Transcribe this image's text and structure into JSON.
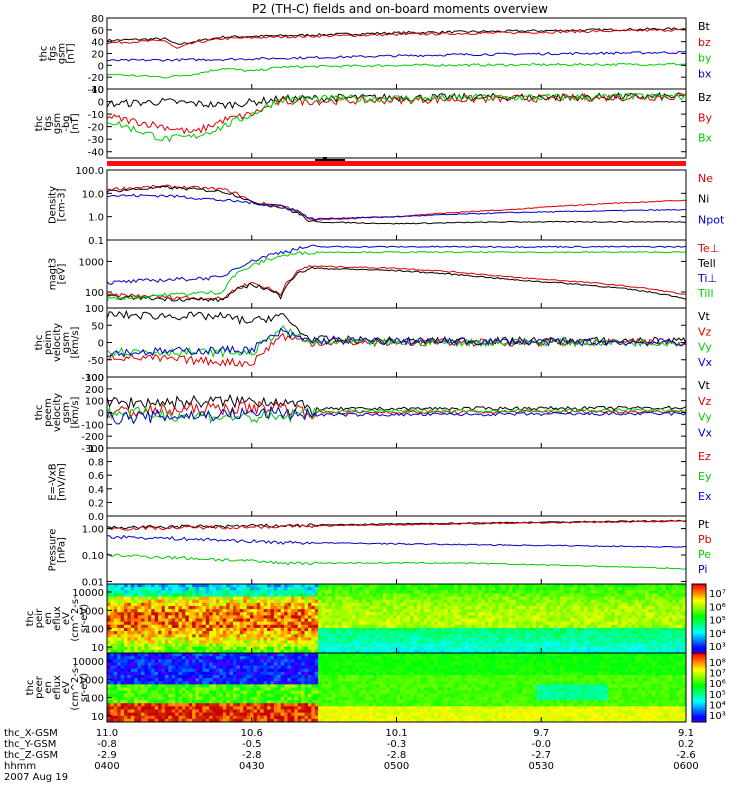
{
  "title": "P2 (TH-C) fields and on-board moments overview",
  "colors": {
    "black": "#000000",
    "red": "#dd0000",
    "green": "#00cc00",
    "blue": "#0000cc",
    "bar_red": "#ff1010"
  },
  "chart_data": [
    {
      "id": "fgs_mag",
      "type": "line",
      "ylabel": [
        "thc",
        "fgs",
        "gsm",
        "[nT]"
      ],
      "yticks": [
        "80",
        "60",
        "40",
        "20",
        "0",
        "-20",
        "-40"
      ],
      "ylim": [
        -40,
        80
      ],
      "series": [
        {
          "name": "Bt",
          "color": "black",
          "x": [
            0,
            0.1,
            0.12,
            0.15,
            0.2,
            0.3,
            0.5,
            1
          ],
          "values": [
            42,
            45,
            35,
            40,
            48,
            50,
            55,
            62
          ]
        },
        {
          "name": "bz",
          "color": "red",
          "x": [
            0,
            0.1,
            0.12,
            0.15,
            0.2,
            0.3,
            0.5,
            1
          ],
          "values": [
            38,
            42,
            28,
            38,
            45,
            48,
            52,
            60
          ]
        },
        {
          "name": "by",
          "color": "green",
          "x": [
            0,
            0.1,
            0.15,
            0.2,
            0.25,
            0.3,
            0.5,
            1
          ],
          "values": [
            -15,
            -20,
            -15,
            -5,
            -10,
            -3,
            0,
            2
          ]
        },
        {
          "name": "bx",
          "color": "blue",
          "x": [
            0,
            0.2,
            0.4,
            0.6,
            1
          ],
          "values": [
            8,
            10,
            14,
            18,
            22
          ]
        }
      ]
    },
    {
      "id": "fgs_mag_detrend",
      "type": "line",
      "ylabel": [
        "thc",
        "fgs",
        "gsm",
        "-bg",
        "[nT]"
      ],
      "yticks": [
        "10",
        "0",
        "-10",
        "-20",
        "-30",
        "-40"
      ],
      "ylim": [
        -45,
        10
      ],
      "series": [
        {
          "name": "Bz",
          "color": "black",
          "x": [
            0,
            0.1,
            0.2,
            0.3,
            0.4,
            1
          ],
          "values": [
            -2,
            0,
            -3,
            2,
            3,
            4
          ]
        },
        {
          "name": "By",
          "color": "red",
          "x": [
            0,
            0.1,
            0.15,
            0.2,
            0.25,
            0.3,
            1
          ],
          "values": [
            -12,
            -20,
            -25,
            -15,
            -10,
            0,
            4
          ]
        },
        {
          "name": "Bx",
          "color": "green",
          "x": [
            0,
            0.1,
            0.15,
            0.2,
            0.25,
            0.3,
            1
          ],
          "values": [
            -15,
            -30,
            -28,
            -20,
            -10,
            2,
            4
          ]
        }
      ]
    },
    {
      "id": "mode_bar",
      "type": "bar",
      "label": "",
      "values": [
        1
      ]
    },
    {
      "id": "density",
      "type": "line",
      "yscale": "log",
      "ylabel": [
        "Density",
        "[cm-3]"
      ],
      "yticks": [
        "100.0",
        "10.0",
        "1.0",
        "0.1"
      ],
      "ylim": [
        0.1,
        100
      ],
      "series": [
        {
          "name": "Ne",
          "color": "red",
          "x": [
            0,
            0.1,
            0.2,
            0.25,
            0.3,
            0.35,
            0.5,
            0.7,
            1
          ],
          "values": [
            15,
            20,
            15,
            4,
            3,
            0.7,
            1,
            2,
            5
          ]
        },
        {
          "name": "Ni",
          "color": "black",
          "x": [
            0,
            0.1,
            0.2,
            0.25,
            0.3,
            0.35,
            0.5,
            0.7,
            1
          ],
          "values": [
            12,
            18,
            12,
            4,
            2.5,
            0.6,
            0.5,
            0.6,
            0.6
          ]
        },
        {
          "name": "Npot",
          "color": "blue",
          "x": [
            0,
            0.1,
            0.2,
            0.3,
            0.35,
            0.5,
            0.7,
            1
          ],
          "values": [
            8,
            8,
            5,
            3,
            0.8,
            1,
            1.5,
            2
          ]
        }
      ]
    },
    {
      "id": "temperature",
      "type": "line",
      "yscale": "log",
      "ylabel": [
        "magt3",
        "[eV]"
      ],
      "yticks": [
        "1000",
        "100"
      ],
      "ylim": [
        30,
        5000
      ],
      "series": [
        {
          "name": "Te⊥",
          "color": "red",
          "x": [
            0,
            0.1,
            0.2,
            0.25,
            0.3,
            0.35,
            0.5,
            0.7,
            1
          ],
          "values": [
            80,
            70,
            60,
            200,
            80,
            700,
            600,
            300,
            80
          ]
        },
        {
          "name": "Tell",
          "color": "black",
          "x": [
            0,
            0.1,
            0.2,
            0.25,
            0.3,
            0.35,
            0.5,
            0.7,
            1
          ],
          "values": [
            70,
            60,
            55,
            180,
            70,
            600,
            500,
            250,
            60
          ]
        },
        {
          "name": "Ti⊥",
          "color": "blue",
          "x": [
            0,
            0.1,
            0.2,
            0.25,
            0.3,
            0.35,
            1
          ],
          "values": [
            200,
            250,
            300,
            1000,
            2000,
            3000,
            3000
          ]
        },
        {
          "name": "Till",
          "color": "green",
          "x": [
            0,
            0.1,
            0.2,
            0.25,
            0.3,
            0.35,
            1
          ],
          "values": [
            60,
            80,
            100,
            700,
            1500,
            2000,
            2000
          ]
        }
      ]
    },
    {
      "id": "peim_velocity",
      "type": "line",
      "ylabel": [
        "thc",
        "peim",
        "velocity",
        "gsm",
        "[km/s]"
      ],
      "yticks": [
        "100",
        "50",
        "0",
        "-50",
        "-100"
      ],
      "ylim": [
        -100,
        100
      ],
      "series": [
        {
          "name": "Vt",
          "color": "black",
          "x": [
            0,
            0.2,
            0.25,
            0.3,
            0.35,
            0.5,
            1
          ],
          "values": [
            80,
            75,
            60,
            80,
            10,
            5,
            5
          ]
        },
        {
          "name": "Vz",
          "color": "red",
          "x": [
            0,
            0.25,
            0.3,
            0.35,
            1
          ],
          "values": [
            -40,
            -60,
            20,
            0,
            0
          ]
        },
        {
          "name": "Vy",
          "color": "green",
          "x": [
            0,
            0.25,
            0.3,
            0.35,
            1
          ],
          "values": [
            -25,
            -30,
            40,
            0,
            0
          ]
        },
        {
          "name": "Vx",
          "color": "blue",
          "x": [
            0,
            0.25,
            0.3,
            0.35,
            1
          ],
          "values": [
            -30,
            -20,
            30,
            5,
            0
          ]
        }
      ]
    },
    {
      "id": "peem_velocity",
      "type": "line",
      "ylabel": [
        "thc",
        "peem",
        "velocity",
        "gsm",
        "[km/s]"
      ],
      "yticks": [
        "300",
        "200",
        "100",
        "0",
        "-100",
        "-200",
        "-300"
      ],
      "ylim": [
        -300,
        300
      ],
      "series": [
        {
          "name": "Vt",
          "color": "black",
          "x": [
            0,
            0.3,
            0.35,
            1
          ],
          "values": [
            80,
            100,
            30,
            40
          ]
        },
        {
          "name": "Vz",
          "color": "red",
          "x": [
            0,
            0.3,
            0.35,
            1
          ],
          "values": [
            0,
            50,
            0,
            10
          ]
        },
        {
          "name": "Vy",
          "color": "green",
          "x": [
            0,
            0.3,
            0.35,
            1
          ],
          "values": [
            0,
            -50,
            10,
            20
          ]
        },
        {
          "name": "Vx",
          "color": "blue",
          "x": [
            0,
            0.3,
            0.35,
            1
          ],
          "values": [
            -50,
            0,
            -20,
            -10
          ]
        }
      ]
    },
    {
      "id": "efield",
      "type": "line",
      "ylabel": [
        "E=-VxB",
        "[mV/m]"
      ],
      "yticks": [
        "1.0",
        "0.8",
        "0.6",
        "0.4",
        "0.2",
        "0.0"
      ],
      "ylim": [
        0,
        1
      ],
      "series": [
        {
          "name": "Ez",
          "color": "red",
          "x": [],
          "values": []
        },
        {
          "name": "Ey",
          "color": "green",
          "x": [],
          "values": []
        },
        {
          "name": "Ex",
          "color": "blue",
          "x": [],
          "values": []
        }
      ]
    },
    {
      "id": "pressure",
      "type": "line",
      "yscale": "log",
      "ylabel": [
        "Pressure",
        "[nPa]"
      ],
      "yticks": [
        "1.00",
        "0.10",
        "0.01"
      ],
      "ylim": [
        0.008,
        3
      ],
      "series": [
        {
          "name": "Pt",
          "color": "black",
          "x": [
            0,
            0.3,
            1
          ],
          "values": [
            1.1,
            1.3,
            2
          ]
        },
        {
          "name": "Pb",
          "color": "red",
          "x": [
            0,
            0.3,
            1
          ],
          "values": [
            1,
            1.2,
            1.9
          ]
        },
        {
          "name": "Pe",
          "color": "green",
          "x": [
            0,
            0.3,
            0.6,
            1
          ],
          "values": [
            0.1,
            0.05,
            0.05,
            0.03
          ]
        },
        {
          "name": "Pi",
          "color": "blue",
          "x": [
            0,
            0.3,
            0.6,
            1
          ],
          "values": [
            0.5,
            0.3,
            0.25,
            0.2
          ]
        }
      ]
    },
    {
      "id": "peir_eflux",
      "type": "heatmap",
      "ylabel": [
        "thc",
        "peir",
        "en",
        "eflux",
        "eV",
        "(cm^2-s-",
        "sr-eV)"
      ],
      "yticks": [
        "10000",
        "1000",
        "100",
        "10"
      ],
      "colorbar_ticks": [
        "10⁷",
        "10⁶",
        "10⁵",
        "10⁴",
        "10³"
      ],
      "colorbar_range": [
        1000,
        10000000
      ]
    },
    {
      "id": "peer_eflux",
      "type": "heatmap",
      "ylabel": [
        "thc",
        "peer",
        "en",
        "eflux",
        "eV",
        "(cm^2-s-",
        "sr-eV)"
      ],
      "yticks": [
        "10000",
        "1000",
        "100",
        "10"
      ],
      "colorbar_ticks": [
        "10⁸",
        "10⁷",
        "10⁶",
        "10⁵",
        "10⁴",
        "10³"
      ],
      "colorbar_range": [
        1000,
        100000000
      ]
    }
  ],
  "x_axis": {
    "rows": [
      {
        "label": "thc_X-GSM",
        "values": [
          "11.0",
          "10.6",
          "10.1",
          "9.7",
          "9.1"
        ]
      },
      {
        "label": "thc_Y-GSM",
        "values": [
          "-0.8",
          "-0.5",
          "-0.3",
          "-0.0",
          "0.2"
        ]
      },
      {
        "label": "thc_Z-GSM",
        "values": [
          "-2.9",
          "-2.8",
          "-2.8",
          "-2.7",
          "-2.6"
        ]
      },
      {
        "label": "hhmm",
        "values": [
          "0400",
          "0430",
          "0500",
          "0530",
          "0600"
        ]
      }
    ],
    "date": "2007 Aug 19"
  }
}
